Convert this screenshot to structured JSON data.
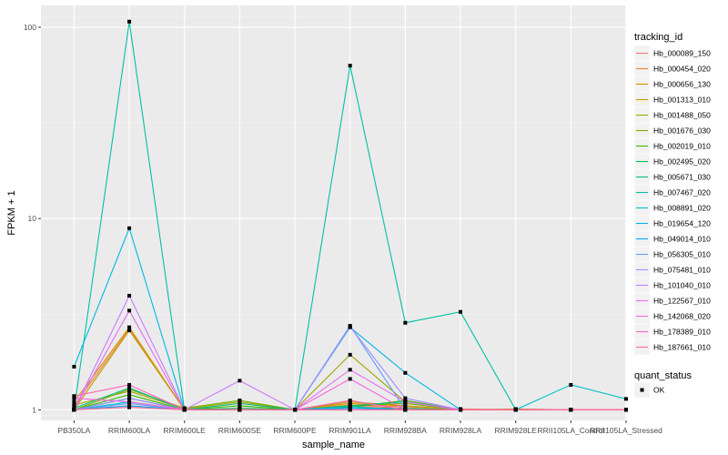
{
  "chart_data": {
    "type": "line",
    "title": "",
    "xlabel": "sample_name",
    "ylabel": "FPKM + 1",
    "y_scale": "log10",
    "ylim": [
      0.88,
      130
    ],
    "y_ticks": [
      {
        "value": 1,
        "label": "1"
      },
      {
        "value": 10,
        "label": "10"
      },
      {
        "value": 100,
        "label": "100"
      }
    ],
    "grid": true,
    "panel_background": "#ebebeb",
    "categories": [
      "PB350LA",
      "RRIM600LA",
      "RRIM600LE",
      "RRIM600SE",
      "RRIM600PE",
      "RRIM901LA",
      "RRIM928BA",
      "RRIM928LA",
      "RRIM928LE",
      "RRII105LA_Control",
      "RRII105LA_Stressed"
    ],
    "series": [
      {
        "name": "Hb_000089_150",
        "color": "#F8766D",
        "values": [
          1.0,
          1.05,
          1.0,
          1.0,
          1.0,
          1.05,
          1.02,
          1.0,
          1.0,
          1.0,
          1.0
        ]
      },
      {
        "name": "Hb_000454_020",
        "color": "#EA8331",
        "values": [
          1.05,
          2.65,
          1.0,
          1.0,
          1.0,
          1.06,
          1.04,
          1.01,
          1.0,
          1.0,
          1.0
        ]
      },
      {
        "name": "Hb_000656_130",
        "color": "#D89000",
        "values": [
          1.1,
          2.7,
          1.0,
          1.0,
          1.0,
          1.08,
          1.05,
          1.0,
          1.0,
          1.0,
          1.0
        ]
      },
      {
        "name": "Hb_001313_010",
        "color": "#C09B00",
        "values": [
          1.0,
          2.6,
          1.0,
          1.0,
          1.0,
          1.1,
          1.05,
          1.0,
          1.01,
          1.0,
          1.0
        ]
      },
      {
        "name": "Hb_001488_050",
        "color": "#A3A500",
        "values": [
          1.06,
          1.25,
          1.01,
          1.1,
          1.0,
          1.94,
          1.1,
          1.0,
          1.0,
          1.0,
          1.0
        ]
      },
      {
        "name": "Hb_001676_030",
        "color": "#7CAE00",
        "values": [
          1.0,
          1.28,
          1.02,
          1.12,
          1.0,
          1.05,
          1.08,
          1.0,
          1.0,
          1.0,
          1.0
        ]
      },
      {
        "name": "Hb_002019_010",
        "color": "#39B600",
        "values": [
          1.0,
          1.2,
          1.0,
          1.05,
          1.0,
          1.03,
          1.12,
          1.0,
          1.0,
          1.0,
          1.0
        ]
      },
      {
        "name": "Hb_002495_020",
        "color": "#00BB4E",
        "values": [
          1.0,
          1.15,
          1.0,
          1.02,
          1.0,
          1.02,
          1.02,
          1.0,
          1.0,
          1.0,
          1.0
        ]
      },
      {
        "name": "Hb_005671_030",
        "color": "#00BF7D",
        "values": [
          1.02,
          1.3,
          1.0,
          1.08,
          1.0,
          1.05,
          1.1,
          1.0,
          1.0,
          1.0,
          1.0
        ]
      },
      {
        "name": "Hb_007467_020",
        "color": "#00C1A3",
        "values": [
          1.0,
          107,
          1.0,
          1.0,
          1.0,
          63,
          2.85,
          3.25,
          1.0,
          1.0,
          1.0
        ]
      },
      {
        "name": "Hb_008891_020",
        "color": "#00BFC4",
        "values": [
          1.0,
          1.1,
          1.0,
          1.0,
          1.0,
          1.04,
          1.0,
          1.0,
          1.0,
          1.35,
          1.14
        ]
      },
      {
        "name": "Hb_019654_120",
        "color": "#00B8E7",
        "values": [
          1.68,
          8.9,
          1.0,
          1.0,
          1.0,
          2.7,
          1.56,
          1.0,
          1.0,
          1.0,
          1.0
        ]
      },
      {
        "name": "Hb_049014_010",
        "color": "#00A9FF",
        "values": [
          1.0,
          1.05,
          1.0,
          1.0,
          1.0,
          1.02,
          1.0,
          1.0,
          1.0,
          1.0,
          1.0
        ]
      },
      {
        "name": "Hb_056305_010",
        "color": "#619CFF",
        "values": [
          1.0,
          1.08,
          1.0,
          1.0,
          1.0,
          2.75,
          1.0,
          1.0,
          1.0,
          1.0,
          1.0
        ]
      },
      {
        "name": "Hb_075481_010",
        "color": "#9F8CFF",
        "values": [
          1.0,
          1.15,
          1.0,
          1.0,
          1.0,
          2.72,
          1.15,
          1.0,
          1.0,
          1.0,
          1.0
        ]
      },
      {
        "name": "Hb_101040_010",
        "color": "#C77CFF",
        "values": [
          1.0,
          3.95,
          1.0,
          1.42,
          1.0,
          1.0,
          1.0,
          1.0,
          1.0,
          1.0,
          1.0
        ]
      },
      {
        "name": "Hb_122567_010",
        "color": "#E76BF3",
        "values": [
          1.0,
          3.3,
          1.0,
          1.0,
          1.0,
          1.62,
          1.1,
          1.0,
          1.0,
          1.0,
          1.0
        ]
      },
      {
        "name": "Hb_142068_020",
        "color": "#F763E0",
        "values": [
          1.15,
          1.1,
          1.0,
          1.0,
          1.0,
          1.45,
          1.0,
          1.0,
          1.0,
          1.0,
          1.0
        ]
      },
      {
        "name": "Hb_178389_010",
        "color": "#FF62BC",
        "values": [
          1.18,
          1.35,
          1.0,
          1.0,
          1.0,
          1.12,
          1.0,
          1.0,
          1.0,
          1.0,
          1.0
        ]
      },
      {
        "name": "Hb_187661_010",
        "color": "#FF6C91",
        "values": [
          1.0,
          1.03,
          1.0,
          1.0,
          1.0,
          1.0,
          1.0,
          1.0,
          1.0,
          1.0,
          1.0
        ]
      }
    ],
    "legend": {
      "title": "tracking_id",
      "placement": "right"
    },
    "status_legend": {
      "title": "quant_status",
      "items": [
        {
          "label": "OK",
          "shape": "square"
        }
      ]
    }
  }
}
